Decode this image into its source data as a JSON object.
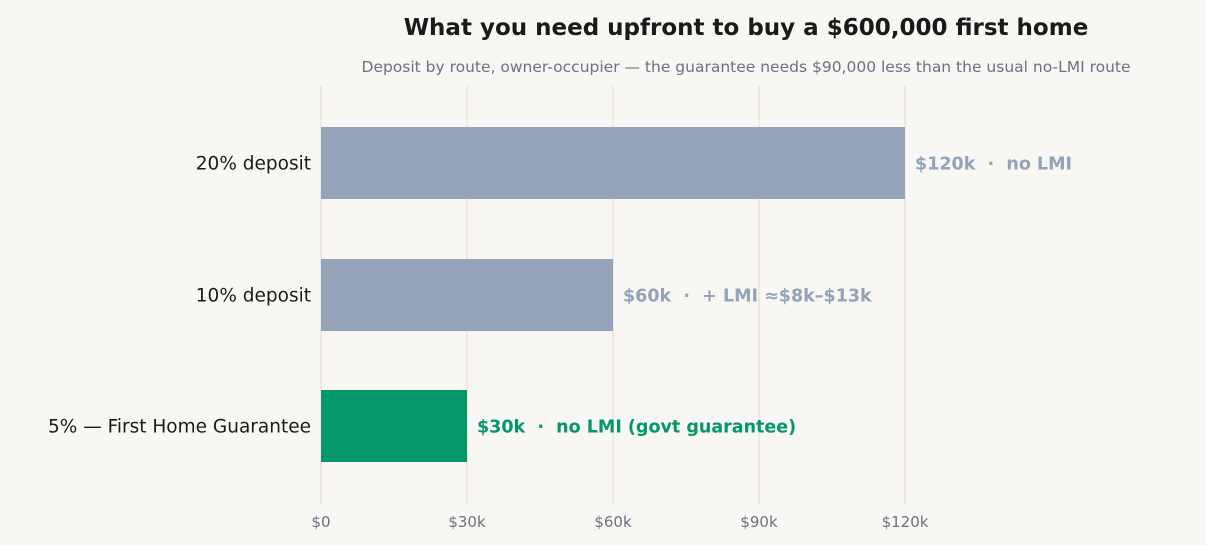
{
  "chart_data": {
    "type": "bar",
    "orientation": "horizontal",
    "title": "What you need upfront to buy a $600,000 first home",
    "subtitle": "Deposit by route, owner-occupier — the guarantee needs $90,000 less than the usual no-LMI route",
    "xlabel": "",
    "ylabel": "",
    "xlim": [
      0,
      120000
    ],
    "grid": "vertical",
    "x_ticks": [
      {
        "value": 0,
        "label": "$0"
      },
      {
        "value": 30000,
        "label": "$30k"
      },
      {
        "value": 60000,
        "label": "$60k"
      },
      {
        "value": 90000,
        "label": "$90k"
      },
      {
        "value": 120000,
        "label": "$120k"
      }
    ],
    "categories": [
      "20% deposit",
      "10% deposit",
      "5% — First Home Guarantee"
    ],
    "values": [
      120000,
      60000,
      30000
    ],
    "data_labels": [
      "$120k  ·  no LMI",
      "$60k  ·  + LMI ≈$8k–$13k",
      "$30k  ·  no LMI (govt guarantee)"
    ],
    "colors": [
      "#94a3b8",
      "#94a3b8",
      "#059669"
    ]
  }
}
